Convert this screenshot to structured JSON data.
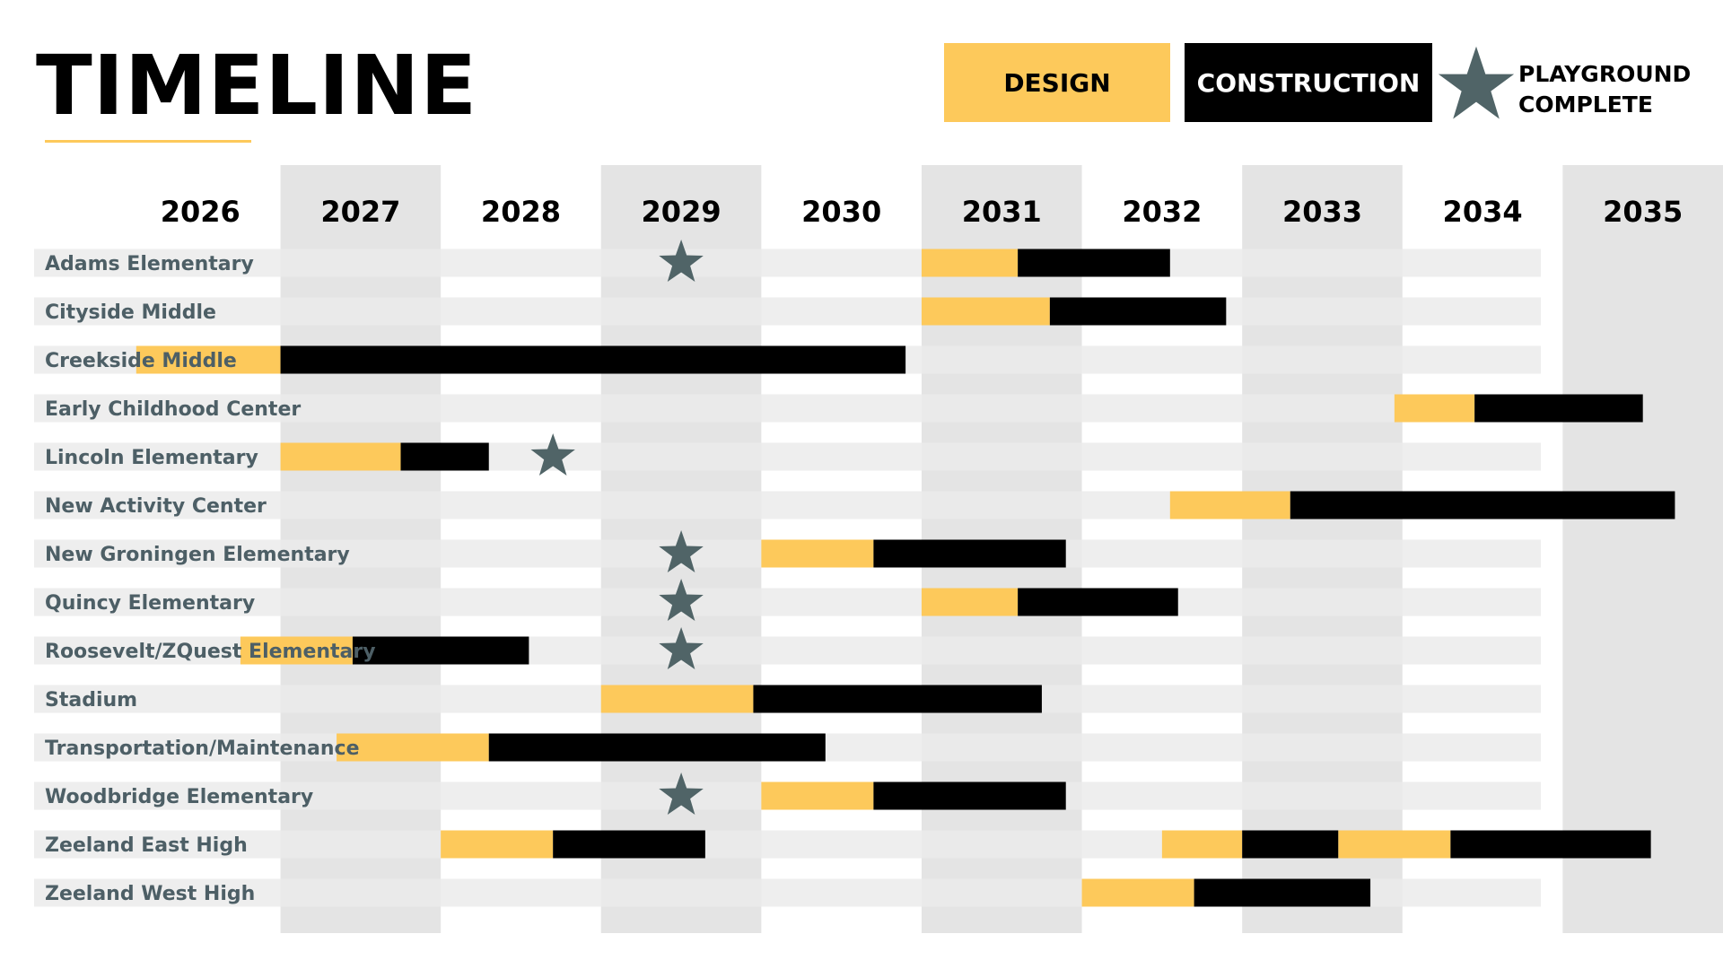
{
  "title": "TIMELINE",
  "legend": {
    "design": "DESIGN",
    "construction": "CONSTRUCTION",
    "playground": "PLAYGROUND COMPLETE"
  },
  "colors": {
    "design": "#fdc95b",
    "construction": "#000000",
    "star": "#506467",
    "label": "#4d5f66",
    "row_band": "#ebebeb",
    "column_band": "#e4e4e4"
  },
  "chart_data": {
    "type": "gantt",
    "x_ticks": [
      "2026",
      "2027",
      "2028",
      "2029",
      "2030",
      "2031",
      "2032",
      "2033",
      "2034",
      "2035"
    ],
    "xlim": [
      2025.25,
      2036.0
    ],
    "shaded_years": [
      "2027",
      "2029",
      "2031",
      "2033",
      "2035"
    ],
    "rows": [
      {
        "label": "Adams Elementary",
        "star": 2029.0,
        "segments": [
          {
            "phase": "design",
            "start": 2031.0,
            "end": 2031.6
          },
          {
            "phase": "construction",
            "start": 2031.6,
            "end": 2032.55
          }
        ]
      },
      {
        "label": "Cityside Middle",
        "star": null,
        "segments": [
          {
            "phase": "design",
            "start": 2031.0,
            "end": 2031.8
          },
          {
            "phase": "construction",
            "start": 2031.8,
            "end": 2032.9
          }
        ]
      },
      {
        "label": "Creekside Middle",
        "star": null,
        "segments": [
          {
            "phase": "design",
            "start": 2026.1,
            "end": 2027.0
          },
          {
            "phase": "construction",
            "start": 2027.0,
            "end": 2030.9
          }
        ]
      },
      {
        "label": "Early Childhood Center",
        "star": null,
        "segments": [
          {
            "phase": "design",
            "start": 2033.95,
            "end": 2034.45
          },
          {
            "phase": "construction",
            "start": 2034.45,
            "end": 2035.5
          }
        ]
      },
      {
        "label": "Lincoln Elementary",
        "star": 2028.2,
        "segments": [
          {
            "phase": "design",
            "start": 2027.0,
            "end": 2027.75
          },
          {
            "phase": "construction",
            "start": 2027.75,
            "end": 2028.3
          }
        ]
      },
      {
        "label": "New Activity Center",
        "star": null,
        "segments": [
          {
            "phase": "design",
            "start": 2032.55,
            "end": 2033.3
          },
          {
            "phase": "construction",
            "start": 2033.3,
            "end": 2035.7
          }
        ]
      },
      {
        "label": "New Groningen Elementary",
        "star": 2029.0,
        "segments": [
          {
            "phase": "design",
            "start": 2030.0,
            "end": 2030.7
          },
          {
            "phase": "construction",
            "start": 2030.7,
            "end": 2031.9
          }
        ]
      },
      {
        "label": "Quincy Elementary",
        "star": 2029.0,
        "segments": [
          {
            "phase": "design",
            "start": 2031.0,
            "end": 2031.6
          },
          {
            "phase": "construction",
            "start": 2031.6,
            "end": 2032.6
          }
        ]
      },
      {
        "label": "Roosevelt/ZQuest Elementary",
        "star": 2029.0,
        "segments": [
          {
            "phase": "design",
            "start": 2026.75,
            "end": 2027.45
          },
          {
            "phase": "construction",
            "start": 2027.45,
            "end": 2028.55
          }
        ]
      },
      {
        "label": "Stadium",
        "star": null,
        "segments": [
          {
            "phase": "design",
            "start": 2029.0,
            "end": 2029.95
          },
          {
            "phase": "construction",
            "start": 2029.95,
            "end": 2031.75
          }
        ]
      },
      {
        "label": "Transportation/Maintenance",
        "star": null,
        "segments": [
          {
            "phase": "design",
            "start": 2027.35,
            "end": 2028.3
          },
          {
            "phase": "construction",
            "start": 2028.3,
            "end": 2030.4
          }
        ]
      },
      {
        "label": "Woodbridge Elementary",
        "star": 2029.0,
        "segments": [
          {
            "phase": "design",
            "start": 2030.0,
            "end": 2030.7
          },
          {
            "phase": "construction",
            "start": 2030.7,
            "end": 2031.9
          }
        ]
      },
      {
        "label": "Zeeland East High",
        "star": null,
        "segments": [
          {
            "phase": "design",
            "start": 2028.0,
            "end": 2028.7
          },
          {
            "phase": "construction",
            "start": 2028.7,
            "end": 2029.65
          },
          {
            "phase": "design",
            "start": 2032.5,
            "end": 2033.0
          },
          {
            "phase": "construction",
            "start": 2033.0,
            "end": 2033.6
          },
          {
            "phase": "design",
            "start": 2033.6,
            "end": 2034.3
          },
          {
            "phase": "construction",
            "start": 2034.3,
            "end": 2035.55
          }
        ]
      },
      {
        "label": "Zeeland West High",
        "star": null,
        "segments": [
          {
            "phase": "design",
            "start": 2032.0,
            "end": 2032.7
          },
          {
            "phase": "construction",
            "start": 2032.7,
            "end": 2033.8
          }
        ]
      }
    ]
  }
}
